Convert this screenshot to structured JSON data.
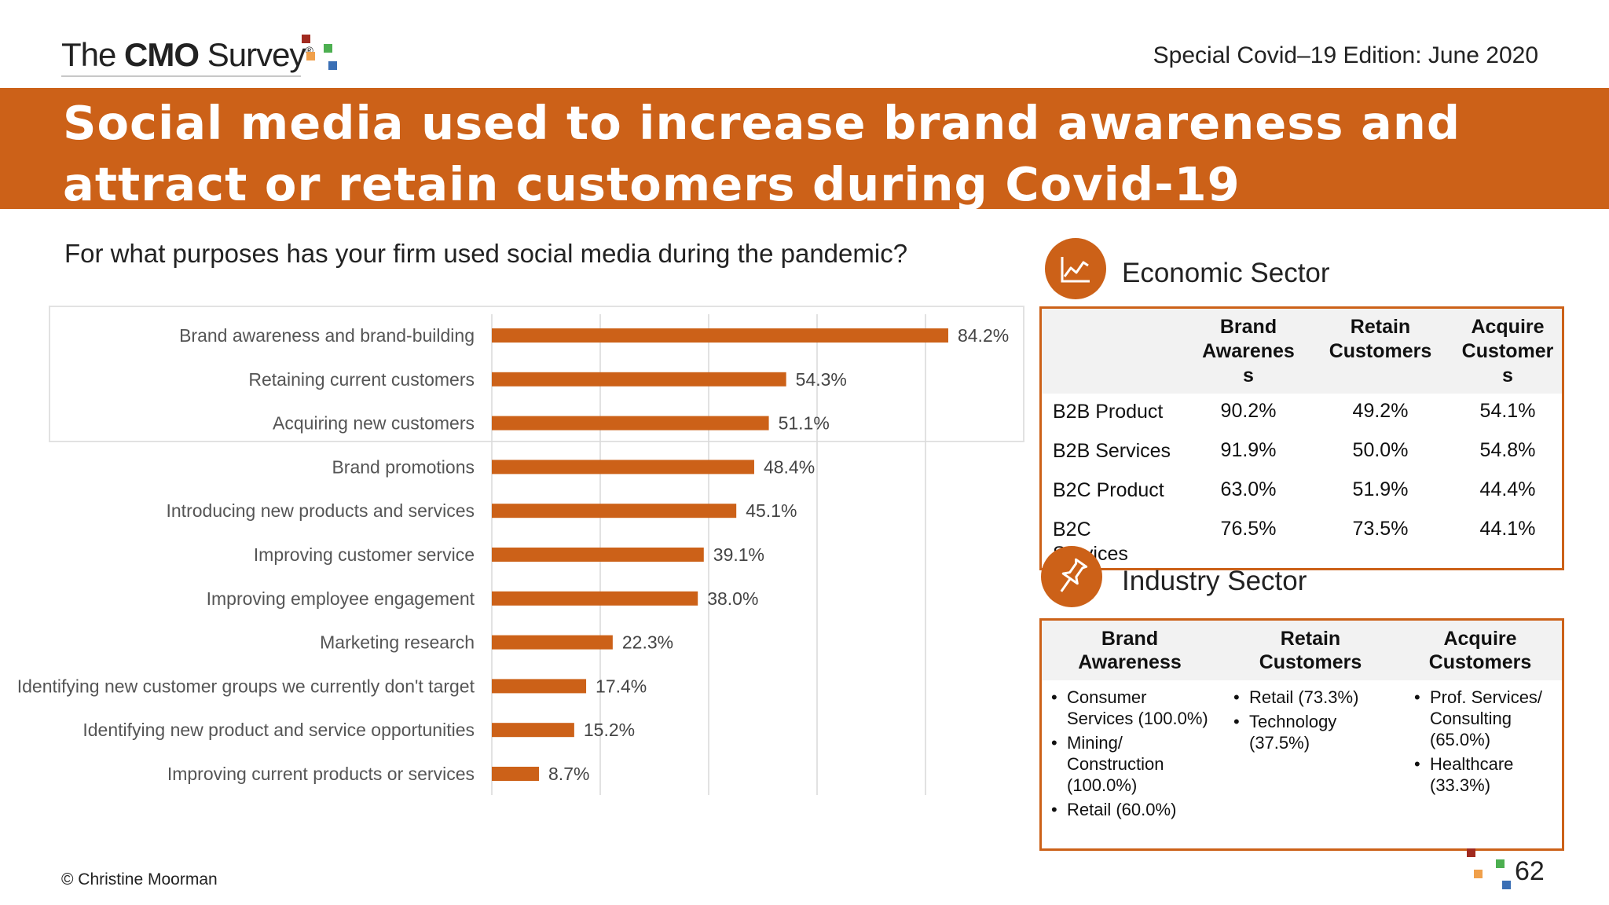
{
  "header": {
    "logo_text_pre": "The ",
    "logo_text_bold": "CMO",
    "logo_text_post": " Survey",
    "logo_reg": "®",
    "edition": "Special Covid–19 Edition: June 2020"
  },
  "title": "Social media used to increase brand awareness and attract or retain customers during Covid-19",
  "question": "For what purposes has your firm used social media during the pandemic?",
  "colors": {
    "accent": "#cc6118",
    "bar": "#cc6118",
    "logo_red": "#a12a1f",
    "logo_orange": "#f0a04b",
    "logo_green": "#4caf50",
    "logo_blue": "#3a6fb5"
  },
  "chart_data": {
    "type": "bar",
    "orientation": "horizontal",
    "categories": [
      "Brand awareness and brand-building",
      "Retaining current customers",
      "Acquiring new customers",
      "Brand promotions",
      "Introducing new products and services",
      "Improving customer service",
      "Improving employee engagement",
      "Marketing research",
      "Identifying new customer groups we currently don't target",
      "Identifying new product and service opportunities",
      "Improving current products or services"
    ],
    "values": [
      84.2,
      54.3,
      51.1,
      48.4,
      45.1,
      39.1,
      38.0,
      22.3,
      17.4,
      15.2,
      8.7
    ],
    "value_labels": [
      "84.2%",
      "54.3%",
      "51.1%",
      "48.4%",
      "45.1%",
      "39.1%",
      "38.0%",
      "22.3%",
      "17.4%",
      "15.2%",
      "8.7%"
    ],
    "xlim": [
      0,
      80
    ],
    "grid": true,
    "legend": "none"
  },
  "economic": {
    "title": "Economic Sector",
    "icon": "line-chart-icon",
    "headers": [
      [
        "Brand",
        "Awarenes",
        "s"
      ],
      [
        "Retain",
        "Customers"
      ],
      [
        "Acquire",
        "Customer",
        "s"
      ]
    ],
    "rows": [
      {
        "label": "B2B Product",
        "values": [
          "90.2%",
          "49.2%",
          "54.1%"
        ]
      },
      {
        "label": "B2B Services",
        "values": [
          "91.9%",
          "50.0%",
          "54.8%"
        ]
      },
      {
        "label": "B2C Product",
        "values": [
          "63.0%",
          "51.9%",
          "44.4%"
        ]
      },
      {
        "label": "B2C Services",
        "values": [
          "76.5%",
          "73.5%",
          "44.1%"
        ]
      }
    ]
  },
  "industry": {
    "title": "Industry Sector",
    "icon": "pushpin-icon",
    "headers": [
      [
        "Brand",
        "Awareness"
      ],
      [
        "Retain",
        "Customers"
      ],
      [
        "Acquire",
        "Customers"
      ]
    ],
    "columns": [
      [
        "Consumer Services (100.0%)",
        "Mining/ Construction (100.0%)",
        "Retail (60.0%)"
      ],
      [
        "Retail (73.3%)",
        "Technology (37.5%)"
      ],
      [
        "Prof. Services/ Consulting (65.0%)",
        "Healthcare (33.3%)"
      ]
    ]
  },
  "footer": {
    "copyright": "© Christine Moorman",
    "page": "62"
  }
}
